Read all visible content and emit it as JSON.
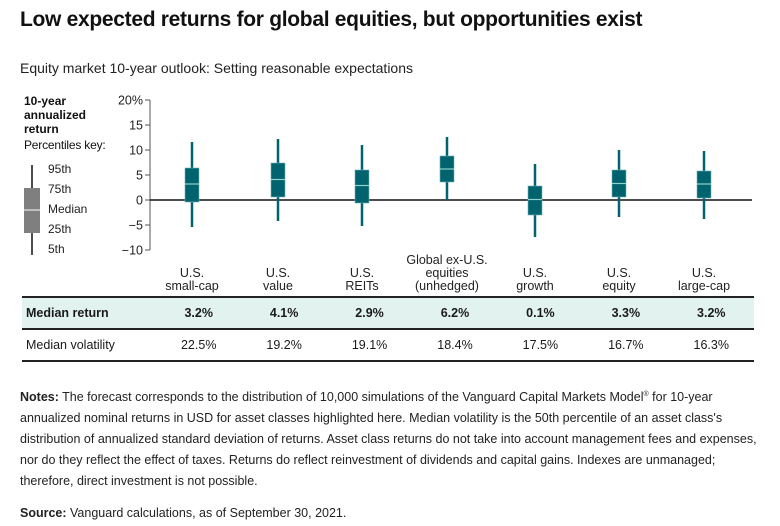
{
  "header": {
    "title": "Low expected returns for global equities, but opportunities exist",
    "subtitle": "Equity market 10-year outlook: Setting reasonable expectations"
  },
  "key": {
    "y_title": [
      "10-year",
      "annualized",
      "return"
    ],
    "label": "Percentiles key:",
    "items": [
      "95th",
      "75th",
      "Median",
      "25th",
      "5th"
    ]
  },
  "chart_data": {
    "type": "boxplot",
    "title": "Equity market 10-year outlook: Setting reasonable expectations",
    "ylabel": "10-year annualized return",
    "ylim": [
      -10,
      20
    ],
    "yticks": [
      20,
      15,
      10,
      5,
      0,
      -5,
      -10
    ],
    "ytick_labels": [
      "20%",
      "15",
      "10",
      "5",
      "0",
      "−5",
      "−10"
    ],
    "box_color": "#00636e",
    "median_line_color": "#8fd3cc",
    "key_color": "#7f7f7f",
    "categories": [
      [
        "U.S.",
        "small-cap"
      ],
      [
        "U.S.",
        "value"
      ],
      [
        "U.S.",
        "REITs"
      ],
      [
        "Global ex-U.S.",
        "equities",
        "(unhedged)"
      ],
      [
        "U.S.",
        "growth"
      ],
      [
        "U.S.",
        "equity"
      ],
      [
        "U.S.",
        "large-cap"
      ]
    ],
    "series": [
      {
        "name": "U.S. small-cap",
        "p5": -5.4,
        "p25": -0.4,
        "median": 3.2,
        "p75": 6.4,
        "p95": 11.6
      },
      {
        "name": "U.S. value",
        "p5": -4.2,
        "p25": 0.6,
        "median": 4.1,
        "p75": 7.4,
        "p95": 12.2
      },
      {
        "name": "U.S. REITs",
        "p5": -5.2,
        "p25": -0.6,
        "median": 2.9,
        "p75": 6.0,
        "p95": 11.0
      },
      {
        "name": "Global ex-U.S. equities (unhedged)",
        "p5": 0.0,
        "p25": 3.6,
        "median": 6.2,
        "p75": 8.8,
        "p95": 12.6
      },
      {
        "name": "U.S. growth",
        "p5": -7.4,
        "p25": -3.0,
        "median": 0.1,
        "p75": 2.8,
        "p95": 7.2
      },
      {
        "name": "U.S. equity",
        "p5": -3.4,
        "p25": 0.6,
        "median": 3.3,
        "p75": 6.0,
        "p95": 10.0
      },
      {
        "name": "U.S. large-cap",
        "p5": -3.8,
        "p25": 0.4,
        "median": 3.2,
        "p75": 5.8,
        "p95": 9.8
      }
    ]
  },
  "table": {
    "rows": [
      {
        "label": "Median return",
        "values": [
          "3.2%",
          "4.1%",
          "2.9%",
          "6.2%",
          "0.1%",
          "3.3%",
          "3.2%"
        ]
      },
      {
        "label": "Median volatility",
        "values": [
          "22.5%",
          "19.2%",
          "19.1%",
          "18.4%",
          "17.5%",
          "16.7%",
          "16.3%"
        ]
      }
    ]
  },
  "notes": {
    "label": "Notes:",
    "text_a": " The forecast corresponds to the distribution of 10,000 simulations of the Vanguard Capital Markets Model",
    "registered": "®",
    "text_b": " for 10-year annualized nominal returns in USD for asset classes highlighted here. Median volatility is the 50th percentile of an asset class's distribution of annualized standard deviation of returns. Asset class returns do not take into account management fees and expenses, nor do they reflect the effect of taxes. Returns do reflect reinvestment of dividends and capital gains. Indexes are unmanaged; therefore, direct investment is not possible."
  },
  "source": {
    "label": "Source:",
    "text": " Vanguard calculations, as of September 30, 2021."
  }
}
